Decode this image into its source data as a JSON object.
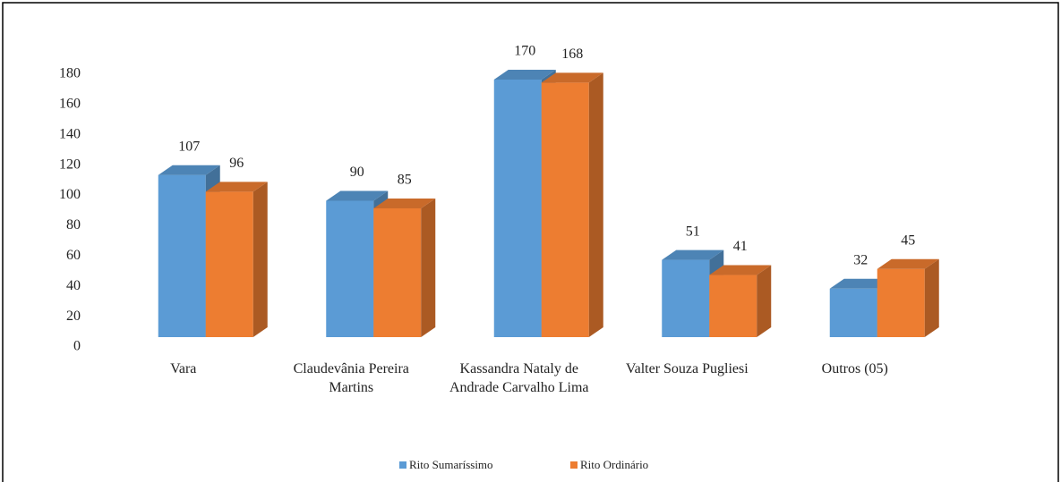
{
  "chart_data": {
    "type": "bar3d",
    "categories": [
      "Vara",
      "Claudevânia Pereira Martins",
      "Kassandra Nataly de Andrade Carvalho Lima",
      "Valter Souza Pugliesi",
      "Outros (05)"
    ],
    "series": [
      {
        "name": "Rito Sumaríssimo",
        "color": "#5b9bd5",
        "values": [
          107,
          90,
          170,
          51,
          32
        ]
      },
      {
        "name": "Rito Ordinário",
        "color": "#ed7d31",
        "values": [
          96,
          85,
          168,
          41,
          45
        ]
      }
    ],
    "ylim": [
      0,
      180
    ],
    "yticks": [
      0,
      20,
      40,
      60,
      80,
      100,
      120,
      140,
      160,
      180
    ],
    "grid": false,
    "legend": "bottom"
  }
}
